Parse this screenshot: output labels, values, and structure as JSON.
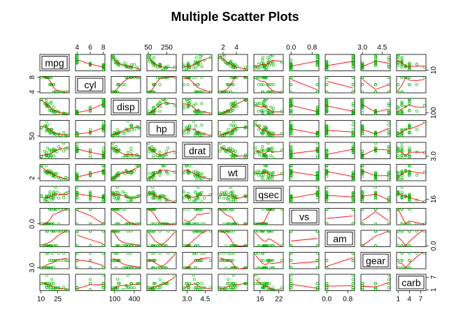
{
  "chart_data": {
    "type": "scatter",
    "title": "Multiple Scatter Plots",
    "variables": [
      "mpg",
      "cyl",
      "disp",
      "hp",
      "drat",
      "wt",
      "qsec",
      "vs",
      "am",
      "gear",
      "carb"
    ],
    "point_color": "#00BB00",
    "smooth_color": "#FF0000",
    "smoother": true,
    "grid": false,
    "axis_ticks": {
      "mpg": [
        10,
        25
      ],
      "cyl": [
        4,
        6,
        8
      ],
      "disp": [
        100,
        400
      ],
      "hp": [
        50,
        250
      ],
      "drat": [
        3.0,
        4.5
      ],
      "wt": [
        2,
        4
      ],
      "qsec": [
        16,
        22
      ],
      "vs": [
        0.0,
        0.8
      ],
      "am": [
        0.0,
        0.8
      ],
      "gear": [
        3.0,
        4.5
      ],
      "carb": [
        1,
        4,
        7
      ]
    },
    "axis_tick_labels": {
      "mpg": [
        "10",
        "25"
      ],
      "cyl": [
        "4",
        "6",
        "8"
      ],
      "disp": [
        "100",
        "400"
      ],
      "hp": [
        "50",
        "250"
      ],
      "drat": [
        "3.0",
        "4.5"
      ],
      "wt": [
        "2",
        "4"
      ],
      "qsec": [
        "16",
        "22"
      ],
      "vs": [
        "0.0",
        "0.8"
      ],
      "am": [
        "0.0",
        "0.8"
      ],
      "gear": [
        "3.0",
        "4.5"
      ],
      "carb": [
        "1",
        "4",
        "7"
      ]
    },
    "left_axis_labels": {
      "cyl": [
        "4",
        "8"
      ],
      "hp": [
        "50"
      ],
      "wt": [
        "2"
      ],
      "vs": [
        "0.0"
      ],
      "gear": [
        "3.0"
      ]
    },
    "right_axis_labels": {
      "mpg": [
        "10"
      ],
      "disp": [
        "100"
      ],
      "drat": [
        "3.0"
      ],
      "qsec": [
        "16"
      ],
      "am": [
        "0.0"
      ],
      "carb": [
        "1",
        "7"
      ]
    },
    "records": [
      [
        21.0,
        6,
        160.0,
        110,
        3.9,
        2.62,
        16.46,
        0,
        1,
        4,
        4
      ],
      [
        21.0,
        6,
        160.0,
        110,
        3.9,
        2.875,
        17.02,
        0,
        1,
        4,
        4
      ],
      [
        22.8,
        4,
        108.0,
        93,
        3.85,
        2.32,
        18.61,
        1,
        1,
        4,
        1
      ],
      [
        21.4,
        6,
        258.0,
        110,
        3.08,
        3.215,
        19.44,
        1,
        0,
        3,
        1
      ],
      [
        18.7,
        8,
        360.0,
        175,
        3.15,
        3.44,
        17.02,
        0,
        0,
        3,
        2
      ],
      [
        18.1,
        6,
        225.0,
        105,
        2.76,
        3.46,
        20.22,
        1,
        0,
        3,
        1
      ],
      [
        14.3,
        8,
        360.0,
        245,
        3.21,
        3.57,
        15.84,
        0,
        0,
        3,
        4
      ],
      [
        24.4,
        4,
        146.7,
        62,
        3.69,
        3.19,
        20.0,
        1,
        0,
        4,
        2
      ],
      [
        22.8,
        4,
        140.8,
        95,
        3.92,
        3.15,
        22.9,
        1,
        0,
        4,
        2
      ],
      [
        19.2,
        6,
        167.6,
        123,
        3.92,
        3.44,
        18.3,
        1,
        0,
        4,
        4
      ],
      [
        17.8,
        6,
        167.6,
        123,
        3.92,
        3.44,
        18.9,
        1,
        0,
        4,
        4
      ],
      [
        16.4,
        8,
        275.8,
        180,
        3.07,
        4.07,
        17.4,
        0,
        0,
        3,
        3
      ],
      [
        17.3,
        8,
        275.8,
        180,
        3.07,
        3.73,
        17.6,
        0,
        0,
        3,
        3
      ],
      [
        15.2,
        8,
        275.8,
        180,
        3.07,
        3.78,
        18.0,
        0,
        0,
        3,
        3
      ],
      [
        10.4,
        8,
        472.0,
        205,
        2.93,
        5.25,
        17.98,
        0,
        0,
        3,
        4
      ],
      [
        10.4,
        8,
        460.0,
        215,
        3.0,
        5.424,
        17.82,
        0,
        0,
        3,
        4
      ],
      [
        14.7,
        8,
        440.0,
        230,
        3.23,
        5.345,
        17.42,
        0,
        0,
        3,
        4
      ],
      [
        32.4,
        4,
        78.7,
        66,
        4.08,
        2.2,
        19.47,
        1,
        1,
        4,
        1
      ],
      [
        30.4,
        4,
        75.7,
        52,
        4.93,
        1.615,
        18.52,
        1,
        1,
        4,
        2
      ],
      [
        33.9,
        4,
        71.1,
        65,
        4.22,
        1.835,
        19.9,
        1,
        1,
        4,
        1
      ],
      [
        21.5,
        4,
        120.1,
        97,
        3.7,
        2.465,
        20.01,
        1,
        0,
        3,
        1
      ],
      [
        15.5,
        8,
        318.0,
        150,
        2.76,
        3.52,
        16.87,
        0,
        0,
        3,
        2
      ],
      [
        15.2,
        8,
        304.0,
        150,
        3.15,
        3.435,
        17.3,
        0,
        0,
        3,
        2
      ],
      [
        13.3,
        8,
        350.0,
        245,
        3.73,
        3.84,
        15.41,
        0,
        0,
        3,
        4
      ],
      [
        19.2,
        8,
        400.0,
        175,
        3.08,
        3.845,
        17.05,
        0,
        0,
        3,
        2
      ],
      [
        27.3,
        4,
        79.0,
        66,
        4.08,
        1.935,
        18.9,
        1,
        1,
        4,
        1
      ],
      [
        26.0,
        4,
        120.3,
        91,
        4.43,
        2.14,
        16.7,
        0,
        1,
        5,
        2
      ],
      [
        30.4,
        4,
        95.1,
        113,
        3.77,
        1.513,
        16.9,
        1,
        1,
        5,
        2
      ],
      [
        15.8,
        8,
        351.0,
        264,
        4.22,
        3.17,
        14.5,
        0,
        1,
        5,
        4
      ],
      [
        19.7,
        6,
        145.0,
        175,
        3.62,
        2.77,
        15.5,
        0,
        1,
        5,
        6
      ],
      [
        15.0,
        8,
        301.0,
        335,
        3.54,
        3.57,
        14.6,
        0,
        1,
        5,
        8
      ],
      [
        21.4,
        4,
        121.0,
        109,
        4.11,
        2.78,
        18.6,
        1,
        1,
        4,
        2
      ]
    ]
  }
}
